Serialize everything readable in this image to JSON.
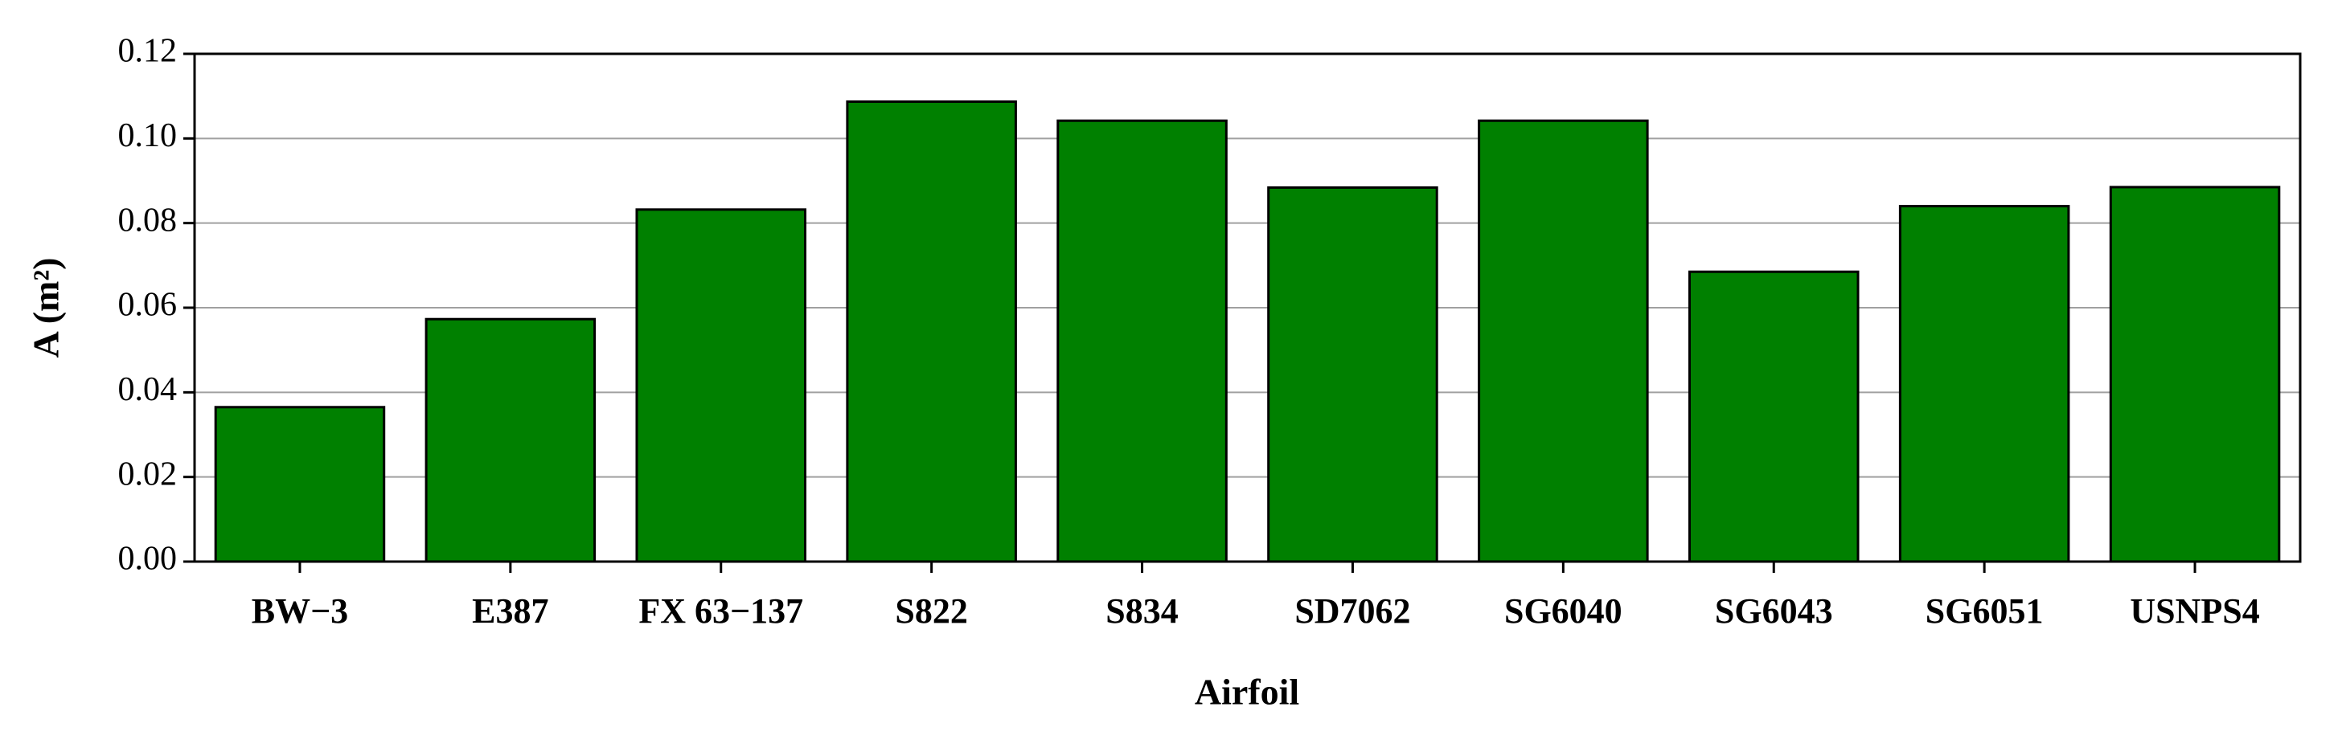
{
  "chart_data": {
    "type": "bar",
    "x_label": "Airfoil",
    "y_label": "A (m²)",
    "categories": [
      "BW−3",
      "E387",
      "FX 63−137",
      "S822",
      "S834",
      "SD7062",
      "SG6040",
      "SG6043",
      "SG6051",
      "USNPS4"
    ],
    "values": [
      0.0365,
      0.0573,
      0.0832,
      0.1087,
      0.1042,
      0.0884,
      0.1042,
      0.0685,
      0.084,
      0.0885
    ],
    "color": "#008000",
    "ylim": [
      0,
      0.12
    ],
    "yticks": [
      {
        "value": 0,
        "label": "0.00"
      },
      {
        "value": 0.02,
        "label": "0.02"
      },
      {
        "value": 0.04,
        "label": "0.04"
      },
      {
        "value": 0.06,
        "label": "0.06"
      },
      {
        "value": 0.08,
        "label": "0.08"
      },
      {
        "value": 0.1,
        "label": "0.10"
      },
      {
        "value": 0.12,
        "label": "0.12"
      }
    ],
    "grid": true
  }
}
